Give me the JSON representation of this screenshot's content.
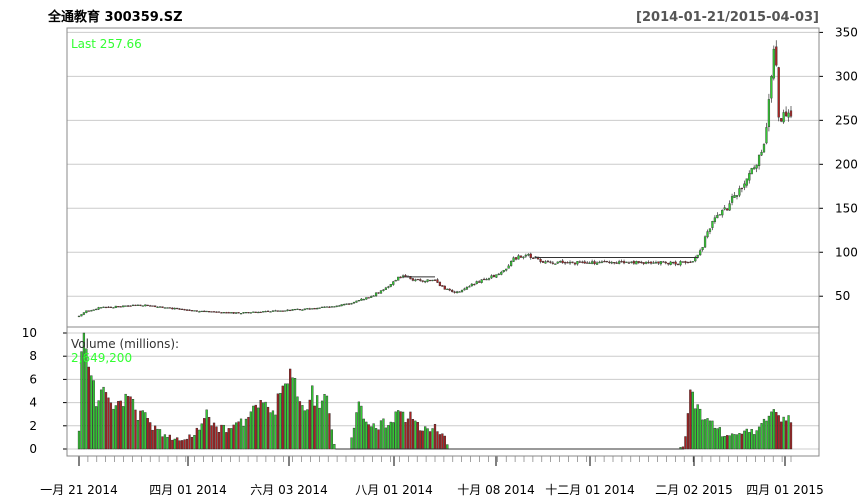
{
  "header": {
    "title": "全通教育 300359.SZ",
    "date_range": "[2014-01-21/2015-04-03]"
  },
  "price_panel": {
    "last_label": "Last 257.66"
  },
  "volume_panel": {
    "label": "Volume (millions):",
    "last_volume": "2,649,200"
  },
  "colors": {
    "up": "#33cc33",
    "down": "#aa2222",
    "grid": "#cccccc",
    "last_text": "#33ff33"
  },
  "chart_data": [
    {
      "type": "candlestick",
      "title": "全通教育 300359.SZ",
      "date_range": "[2014-01-21/2015-04-03]",
      "x_tick_labels": [
        "一月 21 2014",
        "四月 01 2014",
        "六月 03 2014",
        "八月 01 2014",
        "十月 08 2014",
        "十二月 01 2014",
        "二月 02 2015",
        "四月 01 2015"
      ],
      "y_ticks": [
        50,
        100,
        150,
        200,
        250,
        300,
        350
      ],
      "ylim": [
        15,
        355
      ],
      "y_axis_side": "right",
      "grid": true,
      "last": 257.66,
      "close_path": [
        [
          0,
          27
        ],
        [
          0.01,
          33
        ],
        [
          0.03,
          37
        ],
        [
          0.05,
          38
        ],
        [
          0.07,
          39
        ],
        [
          0.09,
          40
        ],
        [
          0.11,
          38
        ],
        [
          0.13,
          36
        ],
        [
          0.15,
          35
        ],
        [
          0.17,
          33
        ],
        [
          0.19,
          32
        ],
        [
          0.21,
          31
        ],
        [
          0.23,
          31
        ],
        [
          0.25,
          32
        ],
        [
          0.27,
          33
        ],
        [
          0.29,
          34
        ],
        [
          0.31,
          35
        ],
        [
          0.33,
          36
        ],
        [
          0.35,
          38
        ],
        [
          0.37,
          40
        ],
        [
          0.39,
          44
        ],
        [
          0.41,
          50
        ],
        [
          0.43,
          58
        ],
        [
          0.44,
          66
        ],
        [
          0.45,
          72
        ],
        [
          0.46,
          72
        ],
        [
          0.47,
          68
        ],
        [
          0.48,
          68
        ],
        [
          0.5,
          68
        ],
        [
          0.51,
          60
        ],
        [
          0.52,
          56
        ],
        [
          0.53,
          55
        ],
        [
          0.54,
          57
        ],
        [
          0.55,
          62
        ],
        [
          0.56,
          66
        ],
        [
          0.57,
          70
        ],
        [
          0.58,
          72
        ],
        [
          0.59,
          75
        ],
        [
          0.6,
          82
        ],
        [
          0.61,
          93
        ],
        [
          0.62,
          95
        ],
        [
          0.63,
          96
        ],
        [
          0.64,
          94
        ],
        [
          0.65,
          90
        ],
        [
          0.66,
          88
        ],
        [
          0.67,
          88
        ],
        [
          0.68,
          88
        ],
        [
          0.7,
          88
        ],
        [
          0.74,
          88
        ],
        [
          0.78,
          88
        ],
        [
          0.82,
          88
        ],
        [
          0.86,
          88
        ],
        [
          0.87,
          98
        ],
        [
          0.875,
          105
        ],
        [
          0.88,
          120
        ],
        [
          0.89,
          135
        ],
        [
          0.9,
          145
        ],
        [
          0.91,
          150
        ],
        [
          0.92,
          165
        ],
        [
          0.93,
          172
        ],
        [
          0.94,
          185
        ],
        [
          0.945,
          192
        ],
        [
          0.95,
          198
        ],
        [
          0.955,
          210
        ],
        [
          0.96,
          215
        ],
        [
          0.965,
          240
        ],
        [
          0.97,
          280
        ],
        [
          0.975,
          330
        ],
        [
          0.978,
          345
        ],
        [
          0.982,
          260
        ],
        [
          0.986,
          248
        ],
        [
          0.99,
          255
        ],
        [
          0.995,
          262
        ],
        [
          1.0,
          257.66
        ]
      ]
    },
    {
      "type": "bar",
      "title": "Volume (millions):",
      "last_value": "2,649,200",
      "y_ticks": [
        0,
        2,
        4,
        6,
        8,
        10
      ],
      "ylim": [
        0,
        10
      ],
      "grid": true,
      "volume_path": [
        [
          0,
          1.5
        ],
        [
          0.005,
          10
        ],
        [
          0.01,
          7.5
        ],
        [
          0.015,
          6.2
        ],
        [
          0.02,
          5
        ],
        [
          0.03,
          4.5
        ],
        [
          0.04,
          4.2
        ],
        [
          0.05,
          3.8
        ],
        [
          0.06,
          3.5
        ],
        [
          0.07,
          4.5
        ],
        [
          0.08,
          3.2
        ],
        [
          0.09,
          2.8
        ],
        [
          0.1,
          2.2
        ],
        [
          0.11,
          1.5
        ],
        [
          0.12,
          1.2
        ],
        [
          0.13,
          1
        ],
        [
          0.14,
          0.8
        ],
        [
          0.15,
          0.9
        ],
        [
          0.16,
          1.1
        ],
        [
          0.17,
          2.2
        ],
        [
          0.18,
          3.5
        ],
        [
          0.19,
          2
        ],
        [
          0.2,
          1.8
        ],
        [
          0.21,
          1.5
        ],
        [
          0.22,
          1.8
        ],
        [
          0.23,
          2.2
        ],
        [
          0.24,
          2.8
        ],
        [
          0.25,
          3.5
        ],
        [
          0.26,
          3.8
        ],
        [
          0.27,
          3.5
        ],
        [
          0.28,
          4.2
        ],
        [
          0.29,
          6.5
        ],
        [
          0.3,
          5.5
        ],
        [
          0.31,
          4.5
        ],
        [
          0.32,
          4.2
        ],
        [
          0.33,
          4.5
        ],
        [
          0.34,
          4
        ],
        [
          0.35,
          3.8
        ],
        [
          0.36,
          0
        ],
        [
          0.38,
          0
        ],
        [
          0.39,
          3.5
        ],
        [
          0.4,
          2.8
        ],
        [
          0.41,
          2.2
        ],
        [
          0.42,
          2
        ],
        [
          0.43,
          2.2
        ],
        [
          0.44,
          2.5
        ],
        [
          0.45,
          3
        ],
        [
          0.46,
          2.8
        ],
        [
          0.47,
          2.5
        ],
        [
          0.48,
          2
        ],
        [
          0.49,
          1.5
        ],
        [
          0.5,
          1.8
        ],
        [
          0.51,
          1.5
        ],
        [
          0.52,
          0
        ],
        [
          0.84,
          0
        ],
        [
          0.85,
          0.3
        ],
        [
          0.86,
          5.5
        ],
        [
          0.87,
          3
        ],
        [
          0.88,
          2.2
        ],
        [
          0.89,
          2.5
        ],
        [
          0.9,
          1.5
        ],
        [
          0.91,
          1.2
        ],
        [
          0.92,
          1
        ],
        [
          0.93,
          1.2
        ],
        [
          0.94,
          1.5
        ],
        [
          0.95,
          1.5
        ],
        [
          0.96,
          2
        ],
        [
          0.97,
          2.5
        ],
        [
          0.98,
          3.5
        ],
        [
          0.99,
          2.8
        ],
        [
          1.0,
          2.65
        ]
      ]
    }
  ]
}
